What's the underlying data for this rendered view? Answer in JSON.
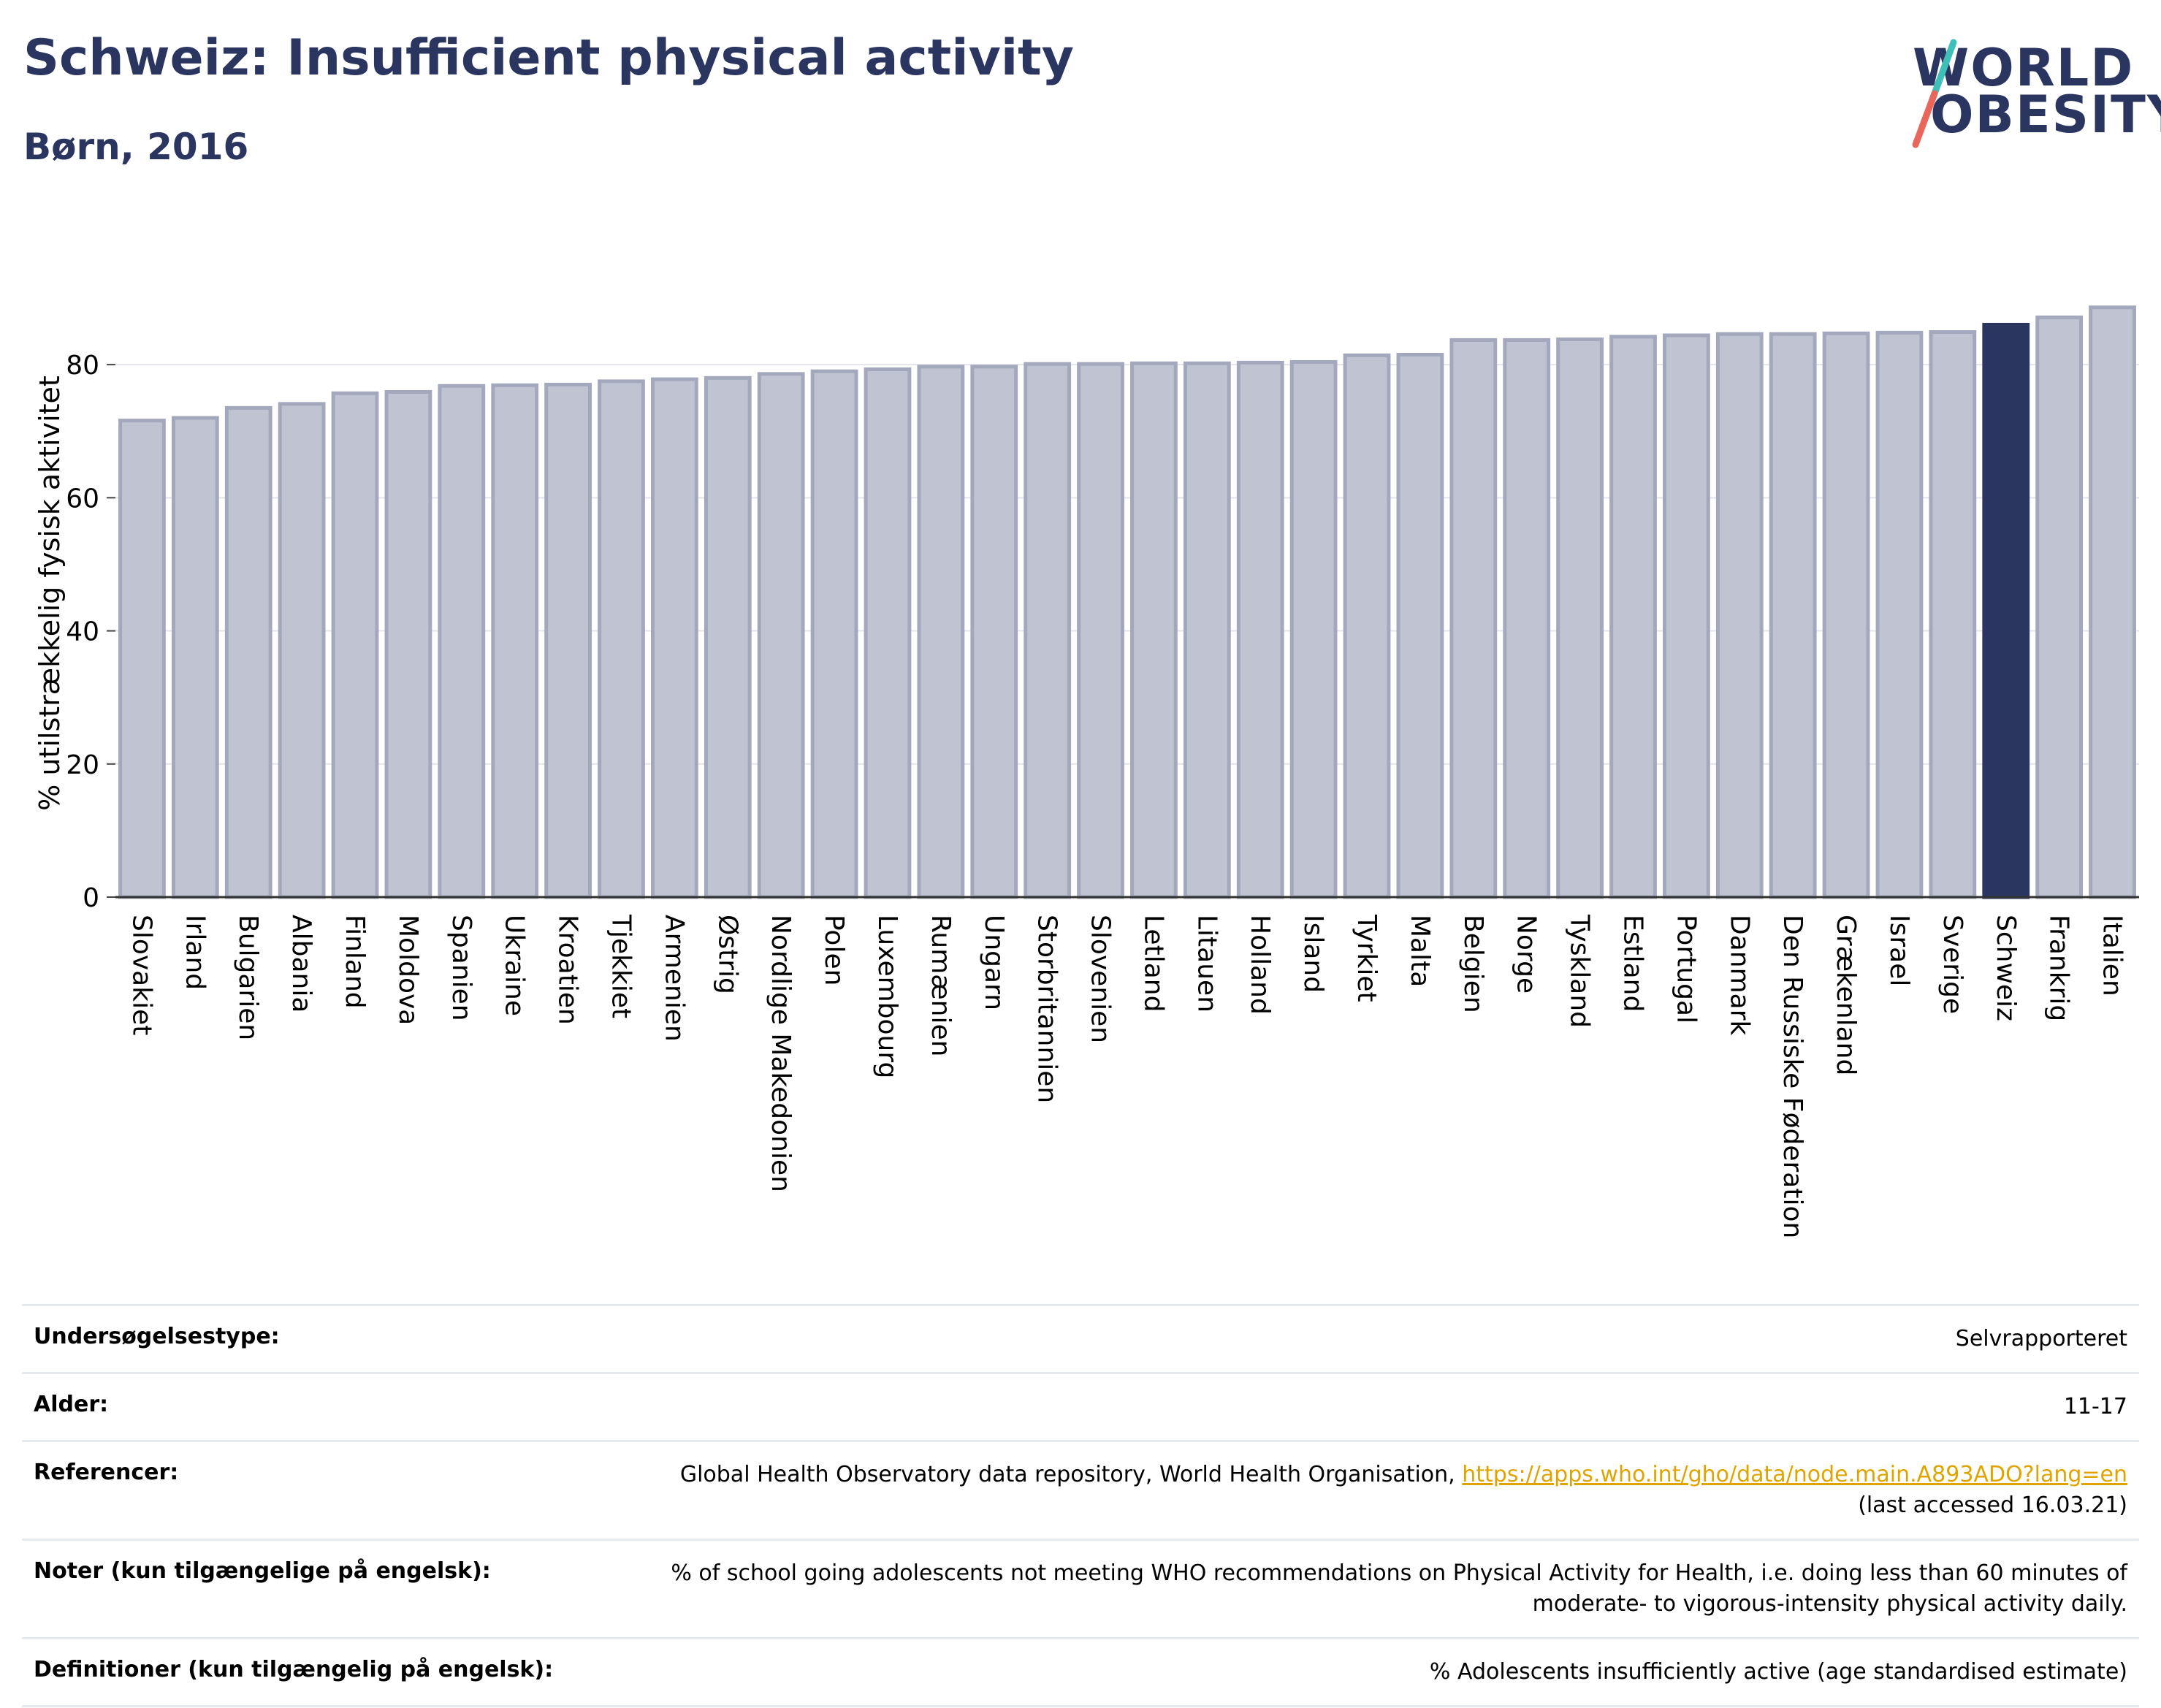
{
  "header": {
    "title": "Schweiz: Insufficient physical activity",
    "subtitle": "Børn, 2016"
  },
  "logo": {
    "line1": "WORLD",
    "line2": "OBESITY"
  },
  "chart_data": {
    "type": "bar",
    "ylabel": "% utilstrækkelig fysisk aktivitet",
    "ylim": [
      0,
      90
    ],
    "yticks": [
      0,
      20,
      40,
      60,
      80
    ],
    "grid": true,
    "highlight": "Schweiz",
    "colors": {
      "bar": "#c0c3d1",
      "bar_edge": "#a4a8bd",
      "highlight": "#2a3560"
    },
    "categories": [
      "Slovakiet",
      "Irland",
      "Bulgarien",
      "Albania",
      "Finland",
      "Moldova",
      "Spanien",
      "Ukraine",
      "Kroatien",
      "Tjekkiet",
      "Armenien",
      "Østrig",
      "Nordlige Makedonien",
      "Polen",
      "Luxembourg",
      "Rumænien",
      "Ungarn",
      "Storbritannien",
      "Slovenien",
      "Letland",
      "Litauen",
      "Holland",
      "Island",
      "Tyrkiet",
      "Malta",
      "Belgien",
      "Norge",
      "Tyskland",
      "Estland",
      "Portugal",
      "Danmark",
      "Den Russiske Føderation",
      "Grækenland",
      "Israel",
      "Sverige",
      "Schweiz",
      "Frankrig",
      "Italien"
    ],
    "values": [
      71.6,
      72.0,
      73.5,
      74.1,
      75.7,
      75.9,
      76.8,
      76.9,
      77.0,
      77.5,
      77.8,
      78.0,
      78.6,
      79.0,
      79.3,
      79.7,
      79.7,
      80.1,
      80.1,
      80.2,
      80.2,
      80.3,
      80.4,
      81.4,
      81.5,
      83.7,
      83.7,
      83.8,
      84.2,
      84.4,
      84.6,
      84.6,
      84.7,
      84.8,
      84.9,
      86.0,
      87.1,
      88.6
    ]
  },
  "info_table": {
    "survey_type_label": "Undersøgelsestype:",
    "survey_type_value": "Selvrapporteret",
    "age_label": "Alder:",
    "age_value": "11-17",
    "references_label": "Referencer:",
    "references_text": "Global Health Observatory data repository, World Health Organisation,",
    "references_link": "https://apps.who.int/gho/data/node.main.A893ADO?lang=en",
    "references_accessed": "(last accessed 16.03.21)",
    "notes_label": "Noter (kun tilgængelige på engelsk):",
    "notes_line1": "% of school going adolescents not meeting WHO recommendations on Physical Activity for Health, i.e. doing less than 60 minutes of",
    "notes_line2": "moderate- to vigorous-intensity physical activity daily.",
    "definitions_label": "Definitioner (kun tilgængelig på engelsk):",
    "definitions_value": "% Adolescents insufficiently active (age standardised estimate)"
  }
}
